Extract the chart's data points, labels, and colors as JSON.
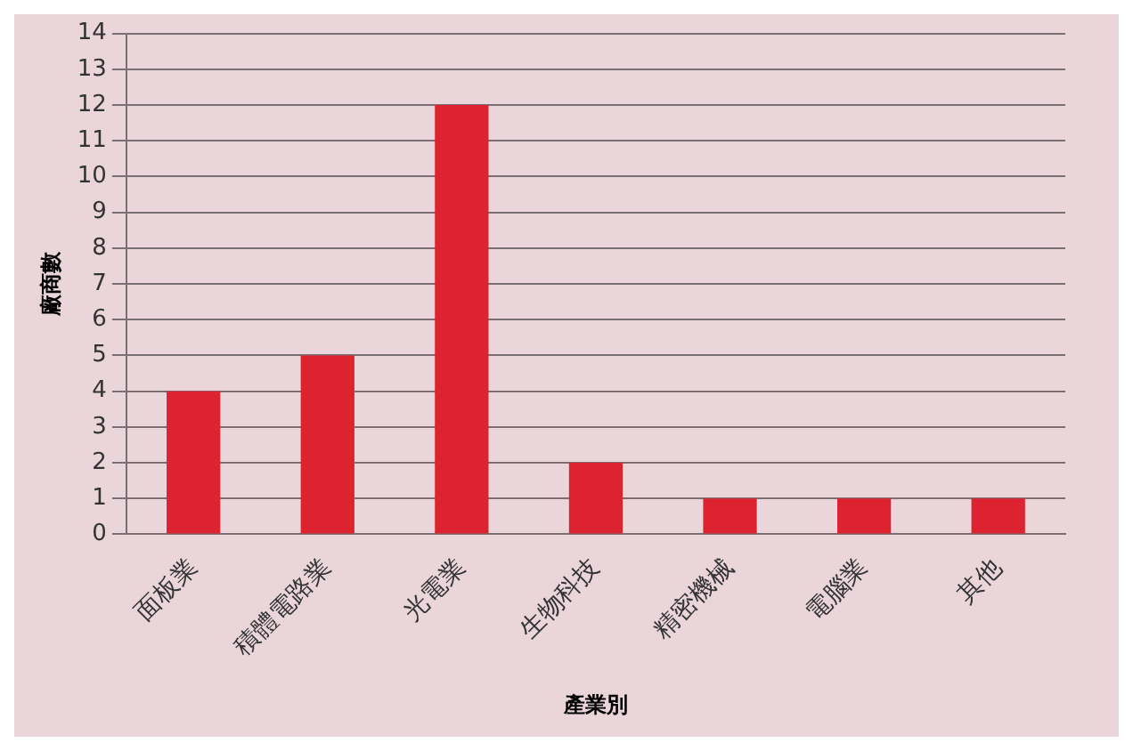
{
  "chart_data": {
    "type": "bar",
    "xlabel": "產業別",
    "ylabel": "廠商數",
    "categories": [
      "面板業",
      "積體電路業",
      "光電業",
      "生物科技",
      "精密機械",
      "電腦業",
      "其他"
    ],
    "values": [
      4,
      5,
      12,
      2,
      1,
      1,
      1
    ],
    "color": "#dd2230",
    "ylim": [
      0,
      14
    ],
    "yticks": [
      0,
      1,
      2,
      3,
      4,
      5,
      6,
      7,
      8,
      9,
      10,
      11,
      12,
      13,
      14
    ],
    "grid": "y",
    "legend": false
  }
}
